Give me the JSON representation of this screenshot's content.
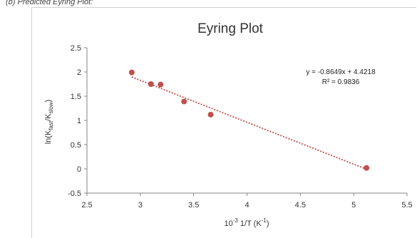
{
  "caption": "(b)   Predicted Eyring Plot:",
  "chart_data": {
    "type": "scatter",
    "title": "Eyring Plot",
    "xlabel": {
      "base": "10",
      "sup1": "-3",
      "mid": " 1/T (K",
      "sup2": "-1",
      "end": ")"
    },
    "ylabel": {
      "prefix": "ln(K",
      "sub1": "fast",
      "mid": "/K",
      "sub2": "slow",
      "end": ")"
    },
    "xlim": [
      2.5,
      5.5
    ],
    "ylim": [
      -0.5,
      2.5
    ],
    "xticks": [
      "2.5",
      "3",
      "3.5",
      "4",
      "4.5",
      "5",
      "5.5"
    ],
    "yticks": [
      "2.5",
      "2",
      "1.5",
      "1",
      "0.5",
      "0",
      "-0.5"
    ],
    "points": [
      {
        "x": 2.92,
        "y": 1.99
      },
      {
        "x": 3.1,
        "y": 1.75
      },
      {
        "x": 3.19,
        "y": 1.74
      },
      {
        "x": 3.41,
        "y": 1.39
      },
      {
        "x": 3.66,
        "y": 1.12
      },
      {
        "x": 5.12,
        "y": 0.02
      }
    ],
    "trendline": {
      "slope": -0.8649,
      "intercept": 4.4218,
      "x_range": [
        2.92,
        5.12
      ]
    },
    "equation": "y = -0.8649x + 4.4218",
    "r_squared": "R² = 0.9836",
    "marker_color": "#c0504d",
    "trend_color": "#c0504d"
  }
}
